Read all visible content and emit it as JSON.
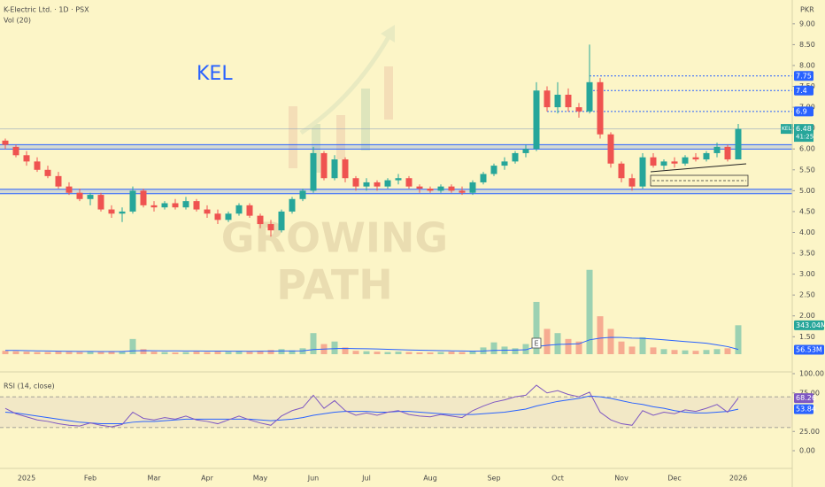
{
  "chart_data": {
    "type": "candlestick",
    "title": "K-Electric Ltd. · 1D · PSX",
    "symbol": "KEL",
    "currency": "PKR",
    "countdown": "41:25",
    "watermark": [
      "GROWING",
      "PATH"
    ],
    "categories": [
      null,
      null,
      "2025",
      null,
      null,
      null,
      null,
      null,
      "Feb",
      null,
      null,
      null,
      null,
      null,
      "Mar",
      null,
      null,
      null,
      null,
      "Apr",
      null,
      null,
      null,
      null,
      "May",
      null,
      null,
      null,
      null,
      "Jun",
      null,
      null,
      null,
      null,
      "Jul",
      null,
      null,
      null,
      null,
      null,
      "Aug",
      null,
      null,
      null,
      null,
      null,
      "Sep",
      null,
      null,
      null,
      null,
      null,
      "Oct",
      null,
      null,
      null,
      null,
      null,
      "Nov",
      null,
      null,
      null,
      null,
      "Dec",
      null,
      null,
      null,
      null,
      null,
      "2026"
    ],
    "open": [
      6.2,
      6.05,
      5.85,
      5.7,
      5.5,
      5.35,
      5.1,
      4.95,
      4.8,
      4.9,
      4.55,
      4.45,
      4.5,
      5.0,
      4.65,
      4.6,
      4.7,
      4.6,
      4.75,
      4.55,
      4.45,
      4.3,
      4.45,
      4.65,
      4.4,
      4.2,
      4.05,
      4.5,
      4.8,
      5.0,
      5.9,
      5.3,
      5.75,
      5.3,
      5.1,
      5.2,
      5.1,
      5.25,
      5.3,
      5.1,
      5.05,
      5.0,
      5.1,
      5.0,
      4.95,
      5.2,
      5.4,
      5.6,
      5.7,
      5.9,
      6.0,
      7.4,
      7.0,
      7.3,
      7.0,
      6.9,
      7.6,
      6.35,
      5.65,
      5.3,
      5.1,
      5.8,
      5.6,
      5.7,
      5.65,
      5.8,
      5.75,
      5.9,
      6.05,
      5.75
    ],
    "high": [
      6.25,
      6.1,
      5.95,
      5.8,
      5.6,
      5.45,
      5.2,
      5.05,
      4.95,
      4.95,
      4.65,
      4.6,
      5.1,
      5.05,
      4.75,
      4.75,
      4.8,
      4.85,
      4.8,
      4.65,
      4.55,
      4.5,
      4.7,
      4.7,
      4.45,
      4.3,
      4.55,
      4.85,
      5.05,
      6.05,
      5.95,
      5.85,
      5.8,
      5.35,
      5.3,
      5.25,
      5.3,
      5.4,
      5.35,
      5.15,
      5.1,
      5.15,
      5.15,
      5.1,
      5.25,
      5.45,
      5.65,
      5.8,
      5.95,
      6.1,
      7.6,
      7.5,
      7.6,
      7.45,
      7.1,
      8.5,
      7.7,
      6.4,
      5.7,
      5.4,
      5.9,
      5.9,
      5.75,
      5.8,
      5.85,
      5.9,
      5.95,
      6.15,
      6.1,
      6.6
    ],
    "low": [
      6.0,
      5.8,
      5.6,
      5.45,
      5.3,
      5.05,
      4.9,
      4.75,
      4.65,
      4.5,
      4.35,
      4.25,
      4.45,
      4.6,
      4.5,
      4.55,
      4.55,
      4.55,
      4.5,
      4.35,
      4.2,
      4.25,
      4.4,
      4.35,
      4.1,
      3.9,
      4.0,
      4.45,
      4.75,
      4.95,
      5.25,
      5.25,
      5.2,
      5.0,
      5.0,
      5.0,
      5.05,
      5.15,
      5.05,
      4.95,
      4.95,
      4.95,
      4.95,
      4.9,
      4.9,
      5.15,
      5.35,
      5.5,
      5.65,
      5.8,
      5.95,
      6.9,
      6.85,
      6.9,
      6.75,
      6.85,
      6.25,
      5.55,
      5.2,
      5.0,
      5.05,
      5.55,
      5.5,
      5.55,
      5.6,
      5.7,
      5.7,
      5.8,
      5.7,
      5.75
    ],
    "close": [
      6.1,
      5.85,
      5.7,
      5.5,
      5.35,
      5.1,
      4.95,
      4.8,
      4.9,
      4.55,
      4.45,
      4.5,
      5.0,
      4.65,
      4.6,
      4.7,
      4.6,
      4.75,
      4.55,
      4.45,
      4.3,
      4.45,
      4.65,
      4.4,
      4.2,
      4.05,
      4.5,
      4.8,
      5.0,
      5.9,
      5.3,
      5.75,
      5.3,
      5.1,
      5.2,
      5.1,
      5.25,
      5.3,
      5.1,
      5.05,
      5.0,
      5.1,
      5.0,
      4.95,
      5.2,
      5.4,
      5.6,
      5.7,
      5.9,
      6.0,
      7.4,
      7.0,
      7.3,
      7.0,
      6.9,
      7.6,
      6.35,
      5.65,
      5.3,
      5.1,
      5.8,
      5.6,
      5.7,
      5.65,
      5.8,
      5.75,
      5.9,
      6.05,
      5.75,
      6.48
    ],
    "up_color": "#26a69a",
    "down_color": "#ef5350",
    "ylim": [
      0.7,
      9.4
    ],
    "yticks": [
      {
        "value": 9,
        "label": "9.00"
      },
      {
        "value": 8.5,
        "label": "8.50"
      },
      {
        "value": 8,
        "label": "8.00"
      },
      {
        "value": 7.5,
        "label": "7.50"
      },
      {
        "value": 7,
        "label": "7.00"
      },
      {
        "value": 6.5,
        "label": "6.50"
      },
      {
        "value": 6,
        "label": "6.00"
      },
      {
        "value": 5.5,
        "label": "5.50"
      },
      {
        "value": 5,
        "label": "5.00"
      },
      {
        "value": 4.5,
        "label": "4.50"
      },
      {
        "value": 4,
        "label": "4.00"
      },
      {
        "value": 3.5,
        "label": "3.50"
      },
      {
        "value": 3,
        "label": "3.00"
      },
      {
        "value": 2.5,
        "label": "2.50"
      },
      {
        "value": 2,
        "label": "2.00"
      },
      {
        "value": 1.5,
        "label": "1.50"
      }
    ],
    "levels": [
      7.75,
      7.4,
      6.9
    ],
    "level_color": "#2962ff",
    "zones": [
      6.05,
      4.98
    ],
    "earnings_marker": "E",
    "volume": {
      "title": "Vol (20)",
      "values": [
        40,
        35,
        30,
        25,
        25,
        30,
        28,
        25,
        30,
        25,
        30,
        35,
        180,
        60,
        30,
        25,
        20,
        25,
        30,
        25,
        30,
        28,
        35,
        30,
        40,
        50,
        60,
        45,
        70,
        250,
        120,
        150,
        80,
        40,
        35,
        30,
        25,
        30,
        25,
        20,
        20,
        25,
        30,
        25,
        40,
        80,
        140,
        90,
        70,
        120,
        620,
        300,
        250,
        180,
        150,
        1000,
        450,
        300,
        150,
        90,
        200,
        80,
        60,
        50,
        45,
        40,
        50,
        60,
        70,
        343.04
      ],
      "last_value_label": "343.04M",
      "ma_values": [
        45,
        44,
        42,
        40,
        38,
        36,
        34,
        33,
        33,
        32,
        31,
        31,
        40,
        42,
        41,
        40,
        39,
        38,
        38,
        37,
        37,
        36,
        35,
        34,
        35,
        36,
        38,
        38,
        40,
        55,
        60,
        66,
        68,
        66,
        64,
        62,
        58,
        54,
        50,
        47,
        44,
        42,
        40,
        38,
        36,
        38,
        44,
        47,
        49,
        52,
        90,
        105,
        115,
        120,
        123,
        170,
        190,
        200,
        198,
        190,
        188,
        180,
        170,
        160,
        150,
        140,
        130,
        110,
        90,
        56.53
      ],
      "ma_last_label": "56.53M",
      "ma_color": "#2962ff",
      "ylim": [
        0,
        1050
      ]
    },
    "rsi": {
      "title": "RSI (14, close)",
      "values": [
        55,
        48,
        44,
        40,
        38,
        35,
        33,
        32,
        36,
        33,
        31,
        34,
        50,
        42,
        40,
        43,
        41,
        45,
        40,
        38,
        35,
        40,
        45,
        40,
        36,
        33,
        45,
        52,
        56,
        72,
        55,
        65,
        52,
        46,
        49,
        46,
        50,
        52,
        47,
        45,
        44,
        47,
        45,
        43,
        52,
        58,
        63,
        66,
        70,
        72,
        85,
        75,
        78,
        73,
        70,
        76,
        50,
        40,
        35,
        33,
        52,
        46,
        50,
        48,
        53,
        51,
        55,
        60,
        50,
        68.26
      ],
      "ma_values": [
        50,
        49,
        47,
        45,
        43,
        41,
        39,
        37,
        36,
        35,
        35,
        35,
        37,
        38,
        38,
        39,
        40,
        41,
        41,
        41,
        41,
        41,
        41,
        41,
        40,
        39,
        40,
        41,
        43,
        46,
        48,
        50,
        51,
        51,
        51,
        50,
        50,
        51,
        51,
        50,
        49,
        48,
        47,
        47,
        47,
        48,
        49,
        50,
        52,
        54,
        58,
        61,
        64,
        66,
        68,
        71,
        70,
        68,
        65,
        62,
        60,
        57,
        55,
        52,
        50,
        49,
        49,
        50,
        51,
        53.84
      ],
      "color": "#7e57c2",
      "ma_color": "#2962ff",
      "bands": [
        70,
        30
      ],
      "ylim": [
        0,
        100
      ],
      "yticks": [
        {
          "value": 100,
          "label": "100.00"
        },
        {
          "value": 75,
          "label": "75.00"
        },
        {
          "value": 25,
          "label": "25.00"
        },
        {
          "value": 0,
          "label": "0.00"
        }
      ]
    }
  }
}
